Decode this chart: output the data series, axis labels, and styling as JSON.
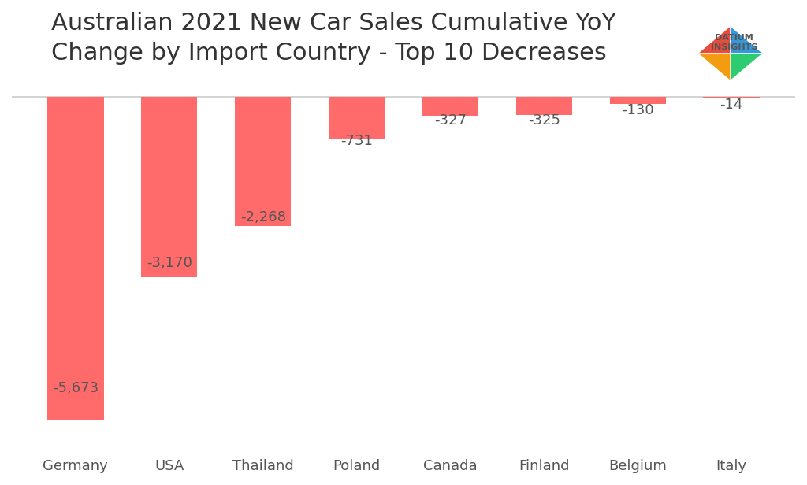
{
  "title_line1": "Australian 2021 New Car Sales Cumulative YoY",
  "title_line2": "Change by Import Country - Top 10 Decreases",
  "categories": [
    "Germany",
    "USA",
    "Thailand",
    "Poland",
    "Canada",
    "Finland",
    "Belgium",
    "Italy"
  ],
  "values": [
    -5673,
    -3170,
    -2268,
    -731,
    -327,
    -325,
    -130,
    -14
  ],
  "bar_color": "#FF6B6B",
  "background_color": "#FFFFFF",
  "label_color": "#555555",
  "title_color": "#333333",
  "ylim": [
    -6200,
    300
  ],
  "title_fontsize": 22,
  "label_fontsize": 13,
  "tick_fontsize": 13,
  "value_fontsize": 13
}
